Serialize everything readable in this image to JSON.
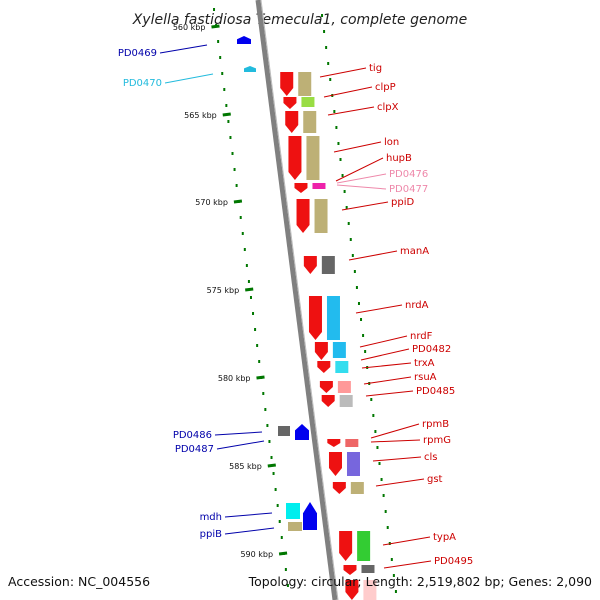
{
  "title": "Xylella fastidiosa Temecula1, complete genome",
  "footer": {
    "accession": "Accession: NC_004556",
    "summary": "Topology: circular; Length: 2,519,802 bp; Genes: 2,090"
  },
  "ticks": [
    {
      "label": "560 kbp",
      "kbp": 560
    },
    {
      "label": "565 kbp",
      "kbp": 565
    },
    {
      "label": "570 kbp",
      "kbp": 570
    },
    {
      "label": "575 kbp",
      "kbp": 575
    },
    {
      "label": "580 kbp",
      "kbp": 580
    },
    {
      "label": "585 kbp",
      "kbp": 585
    },
    {
      "label": "590 kbp",
      "kbp": 590
    }
  ],
  "colors": {
    "forward_gene": "#ee1111",
    "reverse_gene": "#0000ee",
    "backbone": "#808080",
    "tick": "#007700",
    "cog_tan": "#bdb076",
    "cog_gray": "#666666",
    "cog_cyan": "#22bbee",
    "cog_purple": "#7766dd",
    "cog_green": "#33cc33",
    "cog_pink": "#ff6688"
  },
  "genes": [
    {
      "name": "tig",
      "strand": "+",
      "color": "#cc0000"
    },
    {
      "name": "clpP",
      "strand": "+",
      "color": "#cc0000"
    },
    {
      "name": "clpX",
      "strand": "+",
      "color": "#cc0000"
    },
    {
      "name": "lon",
      "strand": "+",
      "color": "#cc0000"
    },
    {
      "name": "hupB",
      "strand": "+",
      "color": "#cc0000"
    },
    {
      "name": "PD0476",
      "strand": "+",
      "color": "#ee88aa"
    },
    {
      "name": "PD0477",
      "strand": "+",
      "color": "#ee88aa"
    },
    {
      "name": "ppiD",
      "strand": "+",
      "color": "#cc0000"
    },
    {
      "name": "manA",
      "strand": "+",
      "color": "#cc0000"
    },
    {
      "name": "nrdA",
      "strand": "+",
      "color": "#cc0000"
    },
    {
      "name": "nrdF",
      "strand": "+",
      "color": "#cc0000"
    },
    {
      "name": "PD0482",
      "strand": "+",
      "color": "#cc0000"
    },
    {
      "name": "trxA",
      "strand": "+",
      "color": "#cc0000"
    },
    {
      "name": "rsuA",
      "strand": "+",
      "color": "#cc0000"
    },
    {
      "name": "PD0485",
      "strand": "+",
      "color": "#cc0000"
    },
    {
      "name": "rpmB",
      "strand": "+",
      "color": "#cc0000"
    },
    {
      "name": "rpmG",
      "strand": "+",
      "color": "#cc0000"
    },
    {
      "name": "cls",
      "strand": "+",
      "color": "#cc0000"
    },
    {
      "name": "gst",
      "strand": "+",
      "color": "#cc0000"
    },
    {
      "name": "typA",
      "strand": "+",
      "color": "#cc0000"
    },
    {
      "name": "PD0495",
      "strand": "+",
      "color": "#cc0000"
    },
    {
      "name": "PD0469",
      "strand": "-",
      "color": "#0000aa"
    },
    {
      "name": "PD0470",
      "strand": "-",
      "color": "#22bbdd"
    },
    {
      "name": "PD0486",
      "strand": "-",
      "color": "#0000aa"
    },
    {
      "name": "PD0487",
      "strand": "-",
      "color": "#0000aa"
    },
    {
      "name": "mdh",
      "strand": "-",
      "color": "#0000aa"
    },
    {
      "name": "ppiB",
      "strand": "-",
      "color": "#0000aa"
    }
  ]
}
